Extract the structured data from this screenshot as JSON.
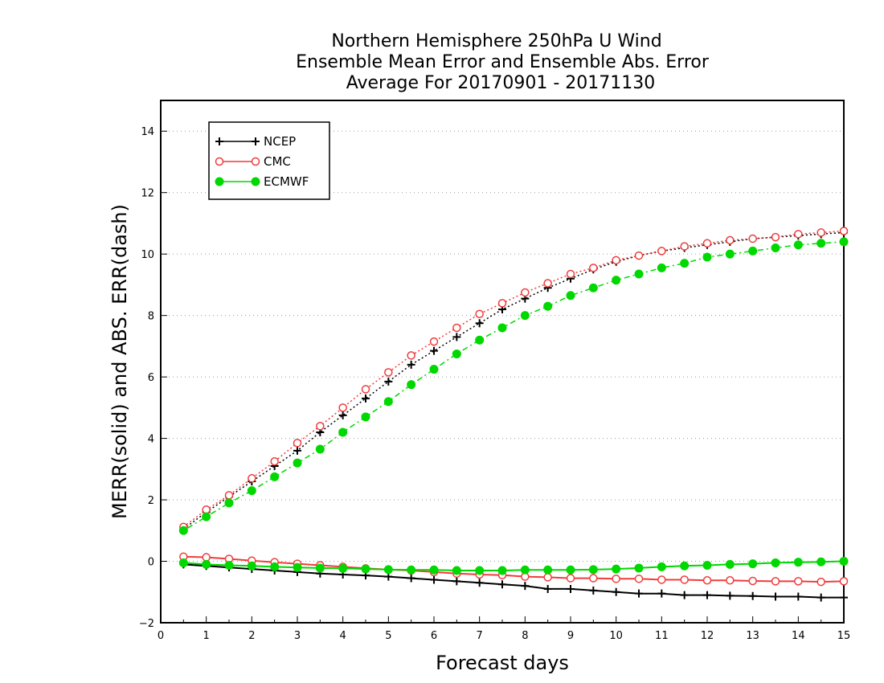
{
  "chart_data": {
    "type": "line",
    "title": [
      "Northern Hemisphere 250hPa U Wind",
      "Ensemble Mean Error and Ensemble Abs. Error",
      "Average For 20170901 - 20171130"
    ],
    "xlabel": "Forecast days",
    "ylabel": "MERR(solid) and ABS. ERR(dash)",
    "xlim": [
      0,
      15
    ],
    "ylim": [
      -2,
      15
    ],
    "xticks": [
      "0",
      "1",
      "2",
      "3",
      "4",
      "5",
      "6",
      "7",
      "8",
      "9",
      "10",
      "11",
      "12",
      "13",
      "14",
      "15"
    ],
    "yticks": [
      "−2",
      "0",
      "2",
      "4",
      "6",
      "8",
      "10",
      "12",
      "14"
    ],
    "grid": "horizontal dotted",
    "legend_position": "top-left",
    "x": [
      0.5,
      1,
      1.5,
      2,
      2.5,
      3,
      3.5,
      4,
      4.5,
      5,
      5.5,
      6,
      6.5,
      7,
      7.5,
      8,
      8.5,
      9,
      9.5,
      10,
      10.5,
      11,
      11.5,
      12,
      12.5,
      13,
      13.5,
      14,
      14.5,
      15
    ],
    "series": [
      {
        "name": "NCEP",
        "color": "#000000",
        "marker": "plus",
        "abs_err": [
          1.05,
          1.6,
          2.1,
          2.6,
          3.1,
          3.6,
          4.2,
          4.75,
          5.3,
          5.85,
          6.4,
          6.85,
          7.3,
          7.75,
          8.2,
          8.55,
          8.9,
          9.2,
          9.5,
          9.75,
          9.95,
          10.1,
          10.2,
          10.3,
          10.4,
          10.5,
          10.55,
          10.6,
          10.65,
          10.7
        ],
        "mean_err": [
          -0.1,
          -0.15,
          -0.2,
          -0.25,
          -0.3,
          -0.35,
          -0.4,
          -0.43,
          -0.46,
          -0.5,
          -0.55,
          -0.6,
          -0.65,
          -0.7,
          -0.75,
          -0.8,
          -0.9,
          -0.9,
          -0.95,
          -1.0,
          -1.05,
          -1.05,
          -1.1,
          -1.1,
          -1.12,
          -1.13,
          -1.15,
          -1.15,
          -1.18,
          -1.18
        ]
      },
      {
        "name": "CMC",
        "color": "#f03c3c",
        "marker": "open-circle",
        "abs_err": [
          1.12,
          1.68,
          2.15,
          2.7,
          3.25,
          3.85,
          4.4,
          5.0,
          5.6,
          6.15,
          6.7,
          7.15,
          7.6,
          8.05,
          8.4,
          8.75,
          9.05,
          9.35,
          9.55,
          9.8,
          9.95,
          10.1,
          10.25,
          10.35,
          10.45,
          10.5,
          10.55,
          10.65,
          10.7,
          10.75
        ],
        "mean_err": [
          0.15,
          0.13,
          0.08,
          0.02,
          -0.03,
          -0.08,
          -0.13,
          -0.18,
          -0.23,
          -0.27,
          -0.3,
          -0.35,
          -0.4,
          -0.43,
          -0.45,
          -0.5,
          -0.52,
          -0.55,
          -0.55,
          -0.57,
          -0.57,
          -0.6,
          -0.6,
          -0.62,
          -0.62,
          -0.64,
          -0.65,
          -0.65,
          -0.67,
          -0.65
        ]
      },
      {
        "name": "ECMWF",
        "color": "#00d800",
        "marker": "filled-circle",
        "abs_err": [
          1.0,
          1.45,
          1.9,
          2.3,
          2.75,
          3.2,
          3.65,
          4.2,
          4.7,
          5.2,
          5.75,
          6.25,
          6.75,
          7.2,
          7.6,
          8.0,
          8.3,
          8.65,
          8.9,
          9.15,
          9.35,
          9.55,
          9.7,
          9.9,
          10.0,
          10.1,
          10.2,
          10.3,
          10.35,
          10.4
        ],
        "mean_err": [
          -0.05,
          -0.1,
          -0.13,
          -0.15,
          -0.18,
          -0.2,
          -0.22,
          -0.23,
          -0.25,
          -0.27,
          -0.28,
          -0.28,
          -0.3,
          -0.3,
          -0.3,
          -0.28,
          -0.28,
          -0.28,
          -0.27,
          -0.25,
          -0.22,
          -0.18,
          -0.15,
          -0.13,
          -0.1,
          -0.08,
          -0.05,
          -0.03,
          -0.02,
          0.0
        ]
      }
    ]
  }
}
